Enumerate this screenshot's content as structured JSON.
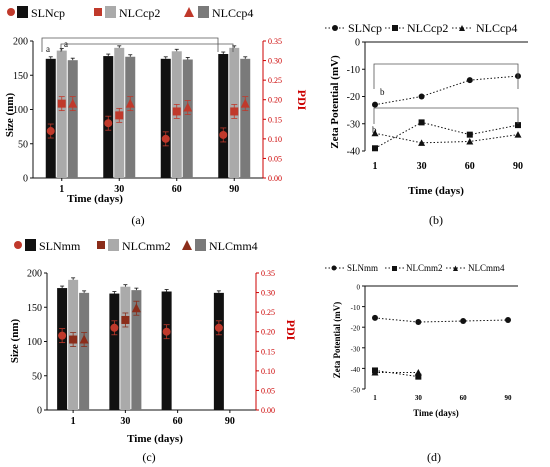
{
  "panels": {
    "a": {
      "label": "(a)"
    },
    "b": {
      "label": "(b)"
    },
    "c": {
      "label": "(c)"
    },
    "d": {
      "label": "(d)"
    }
  },
  "colors": {
    "black": "#111111",
    "light_gray": "#aaaaaa",
    "gray": "#7a7a7a",
    "pdi_red": "#c0392b",
    "pdi_axis_red": "#cc0000"
  },
  "chart_data": [
    {
      "id": "a",
      "type": "bar",
      "xlabel": "Time (days)",
      "ylabel": "Size (nm)",
      "y2label": "PDI",
      "categories": [
        "1",
        "30",
        "60",
        "90"
      ],
      "ylim": [
        0,
        200
      ],
      "yticks": [
        0,
        50,
        100,
        150,
        200
      ],
      "y2lim": [
        0,
        0.35
      ],
      "y2ticks": [
        "0.00",
        "0.05",
        "0.10",
        "0.15",
        "0.20",
        "0.25",
        "0.30",
        "0.35"
      ],
      "series": [
        {
          "name": "SLNcp",
          "values": [
            174,
            178,
            174,
            181
          ],
          "pdi": [
            0.12,
            0.14,
            0.1,
            0.11
          ]
        },
        {
          "name": "NLCcp2",
          "values": [
            186,
            190,
            185,
            190
          ],
          "pdi": [
            0.19,
            0.16,
            0.17,
            0.17
          ]
        },
        {
          "name": "NLCcp4",
          "values": [
            172,
            177,
            173,
            174
          ],
          "pdi": [
            0.19,
            0.19,
            0.18,
            0.19
          ]
        }
      ],
      "annotations": [
        "a",
        "a"
      ]
    },
    {
      "id": "b",
      "type": "line",
      "xlabel": "Time (days)",
      "ylabel": "Zeta Potential (mV)",
      "x": [
        1,
        30,
        60,
        90
      ],
      "xticks": [
        "1",
        "30",
        "60",
        "90"
      ],
      "ylim": [
        -40,
        0
      ],
      "yticks": [
        "0",
        "-10",
        "-20",
        "-30",
        "-40"
      ],
      "series": [
        {
          "name": "SLNcp",
          "values": [
            -23,
            -20,
            -14,
            -12.5
          ]
        },
        {
          "name": "NLCcp2",
          "values": [
            -39,
            -29.5,
            -34,
            -30.5
          ]
        },
        {
          "name": "NLCcp4",
          "values": [
            -33.5,
            -37,
            -36.5,
            -34
          ]
        }
      ],
      "annotations": [
        "b",
        "b"
      ]
    },
    {
      "id": "c",
      "type": "bar",
      "xlabel": "Time (days)",
      "ylabel": "Size (nm)",
      "y2label": "PDI",
      "categories": [
        "1",
        "30",
        "60",
        "90"
      ],
      "ylim": [
        0,
        200
      ],
      "yticks": [
        0,
        50,
        100,
        150,
        200
      ],
      "y2lim": [
        0,
        0.35
      ],
      "y2ticks": [
        "0.00",
        "0.05",
        "0.10",
        "0.15",
        "0.20",
        "0.25",
        "0.30",
        "0.35"
      ],
      "series": [
        {
          "name": "SLNmm",
          "values": [
            178,
            170,
            173,
            171
          ],
          "pdi": [
            0.19,
            0.21,
            0.2,
            0.21
          ]
        },
        {
          "name": "NLCmm2",
          "values": [
            190,
            180,
            null,
            null
          ],
          "pdi": [
            0.18,
            0.23,
            null,
            null
          ]
        },
        {
          "name": "NLCmm4",
          "values": [
            171,
            175,
            null,
            null
          ],
          "pdi": [
            0.18,
            0.26,
            null,
            null
          ]
        }
      ]
    },
    {
      "id": "d",
      "type": "line",
      "xlabel": "Time (days)",
      "ylabel": "Zeta Potential (mV)",
      "x": [
        1,
        30,
        60,
        90
      ],
      "xticks": [
        "1",
        "30",
        "60",
        "90"
      ],
      "ylim": [
        -50,
        0
      ],
      "yticks": [
        "0",
        "-10",
        "-20",
        "-30",
        "-40",
        "-50"
      ],
      "series": [
        {
          "name": "SLNmm",
          "values": [
            -15.5,
            -17.5,
            -17,
            -16.5
          ]
        },
        {
          "name": "NLCmm2",
          "values": [
            -41,
            -44,
            null,
            null
          ]
        },
        {
          "name": "NLCmm4",
          "values": [
            -42,
            -42,
            null,
            null
          ]
        }
      ]
    }
  ]
}
